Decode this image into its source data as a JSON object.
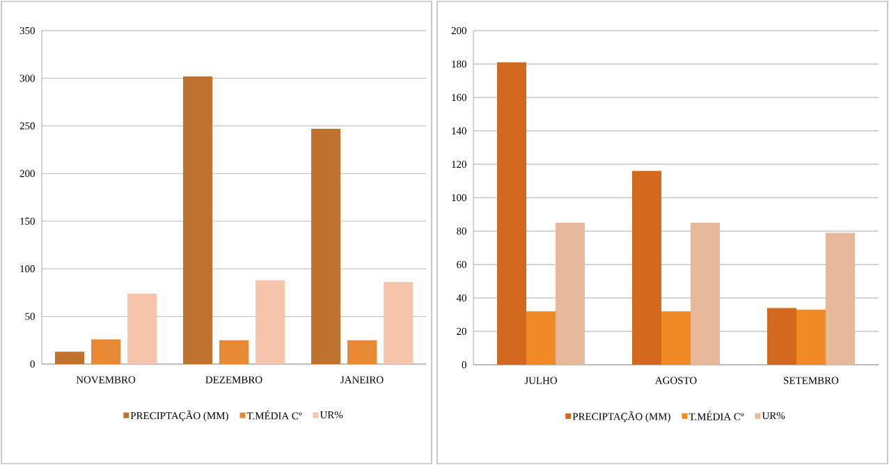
{
  "chart_data": [
    {
      "type": "bar",
      "categories": [
        "NOVEMBRO",
        "DEZEMBRO",
        "JANEIRO"
      ],
      "series": [
        {
          "name": "PRECIPTAÇÃO (MM)",
          "color": "#c0722f",
          "values": [
            13,
            302,
            247
          ]
        },
        {
          "name": "T.MÉDIA Cº",
          "color": "#e88a35",
          "values": [
            26,
            25,
            25
          ]
        },
        {
          "name": "UR%",
          "color": "#f5c4ab",
          "values": [
            74,
            88,
            86
          ]
        }
      ],
      "ylim": [
        0,
        350
      ],
      "yticks": [
        0,
        50,
        100,
        150,
        200,
        250,
        300,
        350
      ],
      "grid": "y",
      "legend": "bottom"
    },
    {
      "type": "bar",
      "categories": [
        "JULHO",
        "AGOSTO",
        "SETEMBRO"
      ],
      "series": [
        {
          "name": "PRECIPTAÇÃO (MM)",
          "color": "#d2691e",
          "values": [
            181,
            116,
            34
          ]
        },
        {
          "name": "T.MÉDIA Cº",
          "color": "#f08a24",
          "values": [
            32,
            32,
            33
          ]
        },
        {
          "name": "UR%",
          "color": "#e8b99a",
          "values": [
            85,
            85,
            79
          ]
        }
      ],
      "ylim": [
        0,
        200
      ],
      "yticks": [
        0,
        20,
        40,
        60,
        80,
        100,
        120,
        140,
        160,
        180,
        200
      ],
      "grid": "y",
      "legend": "bottom"
    }
  ]
}
